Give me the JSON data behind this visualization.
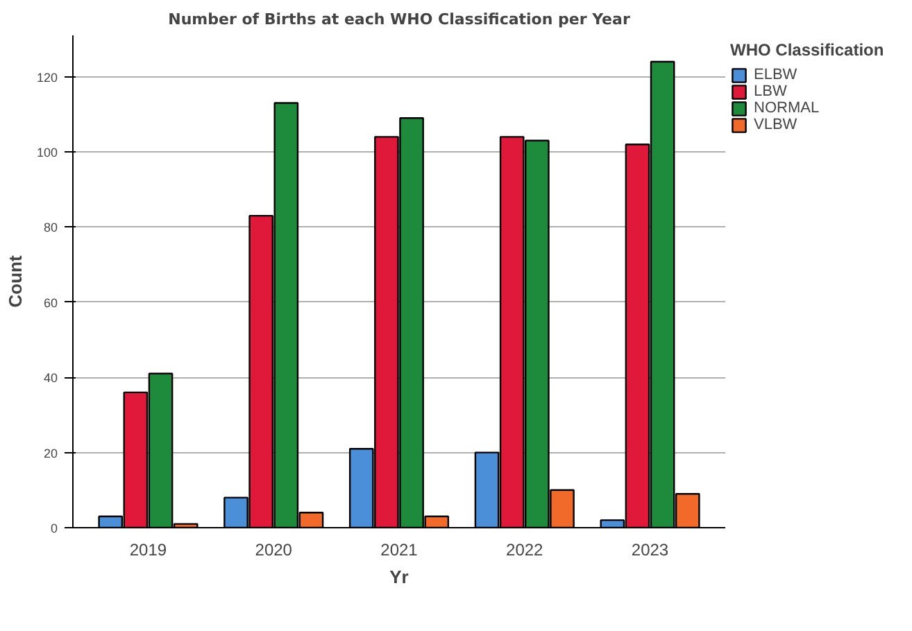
{
  "chart_data": {
    "type": "bar",
    "title": "Number of Births at each WHO Classification per Year",
    "xlabel": "Yr",
    "ylabel": "Count",
    "legend_title": "WHO Classification",
    "categories": [
      "2019",
      "2020",
      "2021",
      "2022",
      "2023"
    ],
    "series": [
      {
        "name": "ELBW",
        "color": "#4a8fd8",
        "values": [
          3,
          8,
          21,
          20,
          2
        ]
      },
      {
        "name": "LBW",
        "color": "#e0193a",
        "values": [
          36,
          83,
          104,
          104,
          102
        ]
      },
      {
        "name": "NORMAL",
        "color": "#1e8a3c",
        "values": [
          41,
          113,
          109,
          103,
          124
        ]
      },
      {
        "name": "VLBW",
        "color": "#f26a2a",
        "values": [
          1,
          4,
          3,
          10,
          9
        ]
      }
    ],
    "ylim": [
      0,
      131
    ],
    "yticks": [
      0,
      20,
      40,
      60,
      80,
      100,
      120
    ],
    "grid": "y",
    "legend": "top right"
  }
}
